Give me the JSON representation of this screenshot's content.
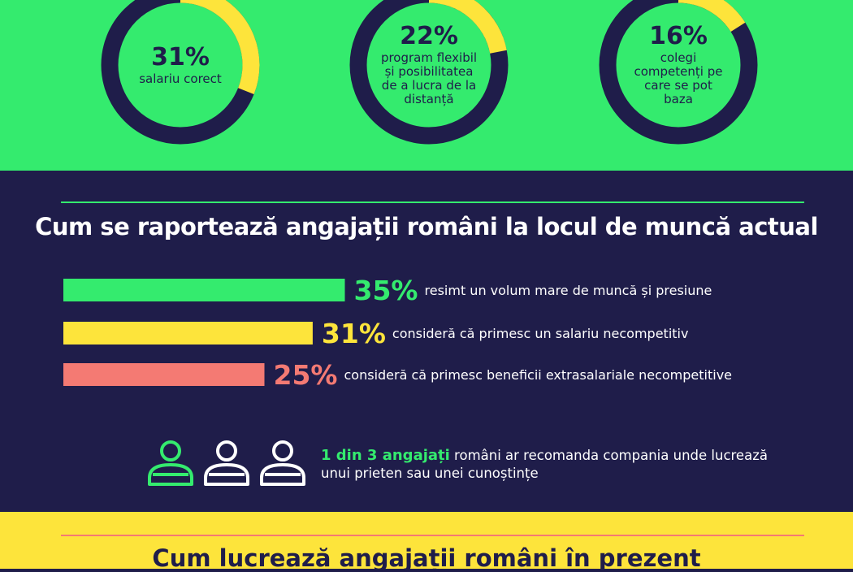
{
  "donuts": [
    {
      "pct": "31%",
      "label": "salariu corect",
      "fill": 0.31
    },
    {
      "pct": "22%",
      "label": "program flexibil și posibilitatea de a lucra de la distanță",
      "fill": 0.22
    },
    {
      "pct": "16%",
      "label": "colegi competenți pe care se pot baza",
      "fill": 0.16
    }
  ],
  "section": {
    "title": "Cum se raportează angajații români la locul de muncă actual"
  },
  "chart_data": {
    "type": "bar",
    "categories": [
      "resimt un volum mare de muncă și presiune",
      "consideră că primesc un salariu necompetitiv",
      "consideră că primesc beneficii extrasalariale necompetitive"
    ],
    "values": [
      35,
      31,
      25
    ],
    "value_labels": [
      "35%",
      "31%",
      "25%"
    ],
    "colors": [
      "#34eb6e",
      "#fde43b",
      "#f47a73"
    ],
    "orientation": "horizontal"
  },
  "callout": {
    "highlight": "1 din 3 angajați",
    "rest": " români ar recomanda compania unde lucrează unui prieten sau unei cunoștințe",
    "people_total": 3,
    "people_highlighted": 1
  },
  "bottom": {
    "title": "Cum lucrează angajații români în prezent"
  },
  "colors": {
    "green": "#34eb6e",
    "navy": "#1f1d4a",
    "yellow": "#fde43b",
    "salmon": "#f47a73",
    "white": "#ffffff"
  }
}
